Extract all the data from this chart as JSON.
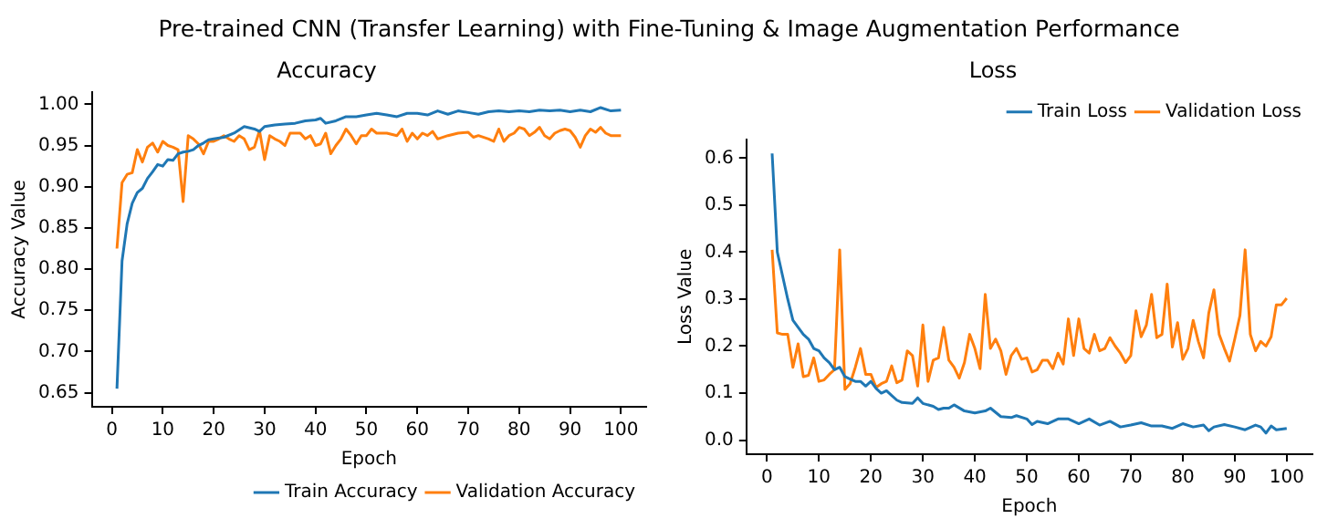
{
  "chart_data": [
    {
      "type": "line",
      "title": "Accuracy",
      "xlabel": "Epoch",
      "ylabel": "Accuracy Value",
      "annotations": [
        "Pre-trained CNN (Transfer Learning) with Fine-Tuning & Image Augmentation Performance"
      ],
      "xlim": [
        -3.95,
        104.95
      ],
      "ylim": [
        0.633,
        1.015
      ],
      "xticks": [
        0,
        10,
        20,
        30,
        40,
        50,
        60,
        70,
        80,
        90,
        100
      ],
      "yticks": [
        0.65,
        {
          "value": 0.7,
          "label": "0.70"
        },
        0.75,
        {
          "value": 0.8,
          "label": "0.80"
        },
        0.85,
        {
          "value": 0.9,
          "label": "0.90"
        },
        0.95,
        {
          "value": 1,
          "label": "1.00"
        }
      ],
      "grid": false,
      "legend": "bottom right",
      "marker": "none",
      "line_style": "solid",
      "series": [
        {
          "name": "Train Accuracy",
          "color": "#1f77b4",
          "x": [
            1,
            2,
            3,
            4,
            5,
            6,
            7,
            8,
            9,
            10,
            11,
            12,
            13,
            14,
            15,
            16,
            17,
            18,
            19,
            20,
            22,
            24,
            26,
            28,
            29,
            30,
            32,
            34,
            36,
            38,
            40,
            41,
            42,
            44,
            46,
            48,
            50,
            52,
            54,
            56,
            58,
            60,
            62,
            64,
            66,
            68,
            70,
            72,
            74,
            76,
            78,
            80,
            82,
            84,
            86,
            88,
            90,
            92,
            94,
            96,
            98,
            100
          ],
          "values": [
            0.655,
            0.81,
            0.855,
            0.88,
            0.893,
            0.898,
            0.91,
            0.918,
            0.927,
            0.925,
            0.933,
            0.932,
            0.94,
            0.942,
            0.943,
            0.945,
            0.95,
            0.953,
            0.957,
            0.958,
            0.96,
            0.965,
            0.973,
            0.97,
            0.967,
            0.973,
            0.975,
            0.976,
            0.977,
            0.98,
            0.981,
            0.983,
            0.977,
            0.98,
            0.985,
            0.985,
            0.987,
            0.989,
            0.987,
            0.985,
            0.989,
            0.989,
            0.987,
            0.992,
            0.988,
            0.992,
            0.99,
            0.988,
            0.991,
            0.992,
            0.991,
            0.992,
            0.991,
            0.993,
            0.992,
            0.993,
            0.991,
            0.993,
            0.991,
            0.996,
            0.992,
            0.993
          ]
        },
        {
          "name": "Validation Accuracy",
          "color": "#ff7f0e",
          "x": [
            1,
            2,
            3,
            4,
            5,
            6,
            7,
            8,
            9,
            10,
            11,
            12,
            13,
            14,
            15,
            16,
            17,
            18,
            19,
            20,
            21,
            22,
            23,
            24,
            25,
            26,
            27,
            28,
            29,
            30,
            31,
            32,
            33,
            34,
            35,
            36,
            37,
            38,
            39,
            40,
            41,
            42,
            43,
            44,
            45,
            46,
            47,
            48,
            49,
            50,
            51,
            52,
            54,
            56,
            57,
            58,
            59,
            60,
            61,
            62,
            63,
            64,
            66,
            68,
            70,
            71,
            72,
            74,
            75,
            76,
            77,
            78,
            79,
            80,
            81,
            82,
            83,
            84,
            85,
            86,
            87,
            88,
            89,
            90,
            91,
            92,
            93,
            94,
            95,
            96,
            97,
            98,
            99,
            100
          ],
          "values": [
            0.825,
            0.905,
            0.915,
            0.917,
            0.945,
            0.93,
            0.948,
            0.953,
            0.942,
            0.955,
            0.95,
            0.948,
            0.945,
            0.882,
            0.962,
            0.958,
            0.952,
            0.94,
            0.955,
            0.955,
            0.958,
            0.962,
            0.958,
            0.955,
            0.962,
            0.958,
            0.945,
            0.948,
            0.968,
            0.933,
            0.962,
            0.958,
            0.955,
            0.95,
            0.965,
            0.965,
            0.965,
            0.958,
            0.962,
            0.95,
            0.952,
            0.965,
            0.94,
            0.95,
            0.958,
            0.97,
            0.962,
            0.952,
            0.962,
            0.962,
            0.97,
            0.965,
            0.965,
            0.962,
            0.97,
            0.955,
            0.965,
            0.958,
            0.965,
            0.962,
            0.967,
            0.958,
            0.962,
            0.965,
            0.966,
            0.96,
            0.962,
            0.958,
            0.955,
            0.97,
            0.955,
            0.962,
            0.965,
            0.972,
            0.97,
            0.962,
            0.966,
            0.972,
            0.962,
            0.958,
            0.965,
            0.968,
            0.97,
            0.968,
            0.96,
            0.948,
            0.962,
            0.97,
            0.966,
            0.972,
            0.965,
            0.962,
            0.962,
            0.962
          ]
        }
      ]
    },
    {
      "type": "line",
      "title": "Loss",
      "xlabel": "Epoch",
      "ylabel": "Loss Value",
      "xlim": [
        -3.95,
        104.95
      ],
      "ylim": [
        -0.03,
        0.64
      ],
      "xticks": [
        0,
        10,
        20,
        30,
        40,
        50,
        60,
        70,
        80,
        90,
        100
      ],
      "yticks": [
        {
          "value": 0,
          "label": "0.0"
        },
        0.1,
        0.2,
        0.3,
        0.4,
        0.5,
        0.6
      ],
      "grid": false,
      "legend": "top right",
      "marker": "none",
      "line_style": "solid",
      "series": [
        {
          "name": "Train Loss",
          "color": "#1f77b4",
          "x": [
            1,
            2,
            3,
            4,
            5,
            6,
            7,
            8,
            9,
            10,
            11,
            12,
            13,
            14,
            15,
            16,
            17,
            18,
            19,
            20,
            21,
            22,
            23,
            24,
            25,
            26,
            28,
            29,
            30,
            32,
            33,
            34,
            35,
            36,
            38,
            40,
            42,
            43,
            45,
            47,
            48,
            50,
            51,
            52,
            54,
            56,
            58,
            60,
            62,
            64,
            66,
            68,
            70,
            72,
            74,
            76,
            78,
            80,
            82,
            84,
            85,
            86,
            88,
            90,
            92,
            94,
            95,
            96,
            97,
            98,
            100
          ],
          "values": [
            0.61,
            0.4,
            0.35,
            0.3,
            0.255,
            0.24,
            0.225,
            0.215,
            0.195,
            0.19,
            0.175,
            0.165,
            0.15,
            0.155,
            0.135,
            0.13,
            0.125,
            0.125,
            0.115,
            0.125,
            0.11,
            0.1,
            0.105,
            0.095,
            0.085,
            0.08,
            0.078,
            0.09,
            0.078,
            0.072,
            0.065,
            0.068,
            0.068,
            0.075,
            0.062,
            0.058,
            0.062,
            0.068,
            0.05,
            0.048,
            0.052,
            0.045,
            0.033,
            0.04,
            0.035,
            0.045,
            0.045,
            0.035,
            0.045,
            0.032,
            0.04,
            0.028,
            0.032,
            0.037,
            0.03,
            0.03,
            0.025,
            0.035,
            0.028,
            0.032,
            0.02,
            0.028,
            0.033,
            0.028,
            0.022,
            0.032,
            0.028,
            0.015,
            0.03,
            0.022,
            0.025
          ]
        },
        {
          "name": "Validation Loss",
          "color": "#ff7f0e",
          "x": [
            1,
            2,
            3,
            4,
            5,
            6,
            7,
            8,
            9,
            10,
            11,
            12,
            13,
            14,
            15,
            16,
            17,
            18,
            19,
            20,
            21,
            22,
            23,
            24,
            25,
            26,
            27,
            28,
            29,
            30,
            31,
            32,
            33,
            34,
            35,
            36,
            37,
            38,
            39,
            40,
            41,
            42,
            43,
            44,
            45,
            46,
            47,
            48,
            49,
            50,
            51,
            52,
            53,
            54,
            55,
            56,
            57,
            58,
            59,
            60,
            61,
            62,
            63,
            64,
            65,
            66,
            67,
            68,
            69,
            70,
            71,
            72,
            73,
            74,
            75,
            76,
            77,
            78,
            79,
            80,
            81,
            82,
            83,
            84,
            85,
            86,
            87,
            88,
            89,
            90,
            91,
            92,
            93,
            94,
            95,
            96,
            97,
            98,
            99,
            100
          ],
          "values": [
            0.405,
            0.228,
            0.225,
            0.225,
            0.155,
            0.205,
            0.135,
            0.138,
            0.175,
            0.125,
            0.128,
            0.14,
            0.15,
            0.405,
            0.108,
            0.12,
            0.155,
            0.195,
            0.14,
            0.14,
            0.112,
            0.12,
            0.125,
            0.158,
            0.122,
            0.128,
            0.19,
            0.18,
            0.115,
            0.245,
            0.125,
            0.17,
            0.175,
            0.24,
            0.17,
            0.155,
            0.132,
            0.165,
            0.225,
            0.195,
            0.152,
            0.31,
            0.195,
            0.215,
            0.19,
            0.14,
            0.18,
            0.195,
            0.172,
            0.175,
            0.145,
            0.15,
            0.17,
            0.17,
            0.152,
            0.185,
            0.162,
            0.258,
            0.18,
            0.258,
            0.195,
            0.185,
            0.225,
            0.19,
            0.195,
            0.218,
            0.2,
            0.185,
            0.165,
            0.18,
            0.275,
            0.22,
            0.245,
            0.31,
            0.218,
            0.225,
            0.332,
            0.198,
            0.25,
            0.172,
            0.195,
            0.255,
            0.21,
            0.175,
            0.27,
            0.32,
            0.225,
            0.195,
            0.168,
            0.215,
            0.265,
            0.405,
            0.225,
            0.19,
            0.21,
            0.2,
            0.22,
            0.288,
            0.288,
            0.302
          ]
        }
      ]
    }
  ]
}
